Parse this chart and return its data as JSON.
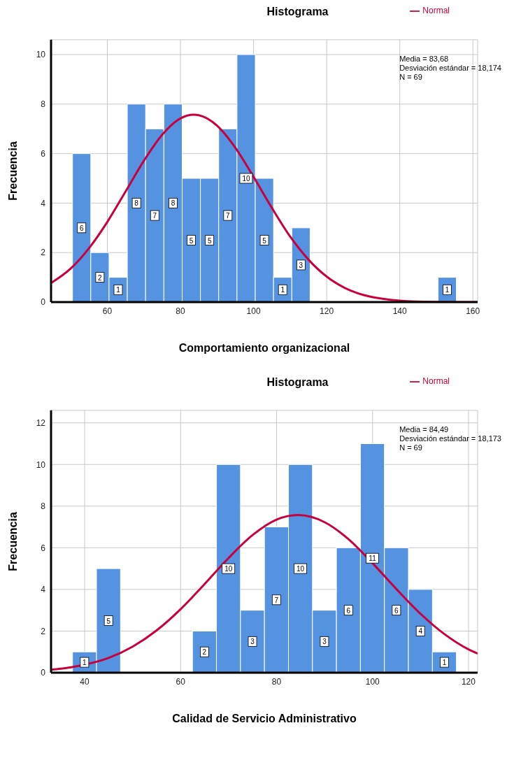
{
  "chart_data": [
    {
      "type": "histogram",
      "title": "Histograma",
      "xlabel": "Comportamiento organizacional",
      "ylabel": "Frecuencia",
      "color": "#5592e0",
      "bins": [
        50.5,
        55.5,
        60.5,
        65.5,
        70.5,
        75.5,
        80.5,
        85.5,
        90.5,
        95.5,
        100.5,
        105.5,
        110.5,
        115.5,
        120.5,
        125.5,
        130.5,
        135.5,
        140.5,
        145.5,
        150.5,
        155.5
      ],
      "values": [
        6,
        2,
        1,
        8,
        7,
        8,
        5,
        5,
        7,
        10,
        5,
        1,
        3,
        0,
        0,
        0,
        0,
        0,
        0,
        0,
        1
      ],
      "value_labels": [
        "6",
        "2",
        "1",
        "8",
        "7",
        "8",
        "5",
        "5",
        "7",
        "10",
        "5",
        "1",
        "3",
        null,
        null,
        null,
        null,
        null,
        null,
        null,
        "1"
      ],
      "xlim": [
        44.6,
        161.3
      ],
      "xticks": [
        60,
        80,
        100,
        120,
        140,
        160
      ],
      "ylim": [
        0,
        10.6
      ],
      "yticks": [
        0,
        2,
        4,
        6,
        8,
        10
      ],
      "grid": true,
      "legend": "top right",
      "series": [
        {
          "name": "Normal",
          "type": "line",
          "color": "#c8003c",
          "marker": "none",
          "x": [
            44.6,
            50,
            55,
            60,
            65,
            70,
            75,
            80,
            83.68,
            85,
            90,
            95,
            100,
            105,
            110,
            115,
            120,
            125,
            130,
            135,
            140,
            150,
            161.3
          ],
          "values": [
            0.77,
            1.36,
            2.18,
            3.24,
            4.47,
            5.71,
            6.76,
            7.42,
            7.57,
            7.55,
            7.13,
            6.24,
            5.06,
            3.81,
            2.65,
            1.72,
            1.03,
            0.57,
            0.29,
            0.14,
            0.06,
            0.01,
            0
          ]
        }
      ],
      "annotations": [
        "Media = 83,68",
        "Desviación estándar = 18,174",
        "N = 69"
      ]
    },
    {
      "type": "histogram",
      "title": "Histograma",
      "xlabel": "Calidad de Servicio Administrativo",
      "ylabel": "Frecuencia",
      "color": "#5592e0",
      "bins": [
        37.5,
        42.5,
        47.5,
        52.5,
        57.5,
        62.5,
        67.5,
        72.5,
        77.5,
        82.5,
        87.5,
        92.5,
        97.5,
        102.5,
        107.5,
        112.5,
        117.5
      ],
      "values": [
        1,
        5,
        0,
        0,
        0,
        2,
        10,
        3,
        7,
        10,
        3,
        6,
        11,
        6,
        4,
        1
      ],
      "value_labels": [
        "1",
        "5",
        null,
        null,
        null,
        "2",
        "10",
        "3",
        "7",
        "10",
        "3",
        "6",
        "11",
        "6",
        "4",
        "1"
      ],
      "xlim": [
        33,
        121.9
      ],
      "xticks": [
        40,
        60,
        80,
        100,
        120
      ],
      "ylim": [
        0,
        12.6
      ],
      "yticks": [
        0,
        2,
        4,
        6,
        8,
        10,
        12
      ],
      "grid": true,
      "legend": "top right",
      "series": [
        {
          "name": "Normal",
          "type": "line",
          "color": "#c8003c",
          "marker": "none",
          "x": [
            33,
            35,
            37,
            43,
            45,
            50,
            55,
            60,
            65,
            70,
            75,
            80,
            84.49,
            90,
            95,
            100,
            105,
            110,
            115,
            120,
            121.9
          ],
          "values": [
            0.14,
            0.19,
            0.25,
            0.56,
            0.71,
            1.25,
            2.03,
            3.05,
            4.26,
            5.51,
            6.61,
            7.35,
            7.57,
            7.23,
            6.41,
            5.26,
            4.01,
            2.83,
            1.85,
            1.12,
            0.92
          ]
        }
      ],
      "annotations": [
        "Media = 84,49",
        "Desviación estándar = 18,173",
        "N = 69"
      ]
    }
  ]
}
